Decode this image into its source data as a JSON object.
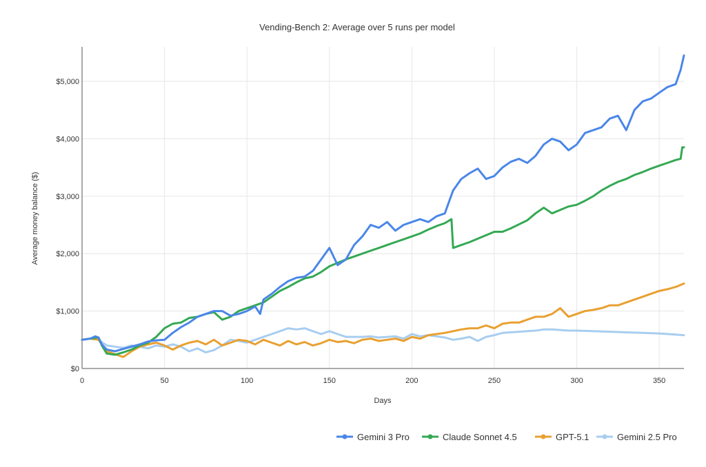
{
  "chart_data": {
    "type": "line",
    "title": "Vending-Bench 2: Average over 5 runs per model",
    "xlabel": "Days",
    "ylabel": "Average money balance ($)",
    "xlim": [
      0,
      365
    ],
    "ylim": [
      0,
      5600
    ],
    "xticks": [
      0,
      50,
      100,
      150,
      200,
      250,
      300,
      350
    ],
    "yticks": [
      0,
      1000,
      2000,
      3000,
      4000,
      5000
    ],
    "ytick_labels": [
      "$0",
      "$1,000",
      "$2,000",
      "$3,000",
      "$4,000",
      "$5,000"
    ],
    "grid": true,
    "legend_position": "bottom-right",
    "series": [
      {
        "name": "Gemini 3 Pro",
        "color": "#4a86e8",
        "x": [
          0,
          5,
          8,
          10,
          12,
          15,
          20,
          25,
          30,
          35,
          40,
          45,
          50,
          55,
          60,
          65,
          70,
          75,
          80,
          85,
          90,
          95,
          100,
          105,
          108,
          110,
          115,
          120,
          125,
          130,
          135,
          140,
          145,
          150,
          155,
          160,
          165,
          170,
          175,
          180,
          185,
          190,
          195,
          200,
          205,
          210,
          215,
          220,
          225,
          230,
          235,
          240,
          245,
          250,
          255,
          260,
          265,
          270,
          275,
          280,
          285,
          290,
          295,
          300,
          305,
          310,
          315,
          320,
          325,
          330,
          335,
          340,
          345,
          350,
          355,
          360,
          363,
          365
        ],
        "y": [
          500,
          520,
          560,
          540,
          420,
          330,
          300,
          340,
          380,
          420,
          470,
          490,
          500,
          620,
          720,
          800,
          900,
          950,
          1000,
          1000,
          920,
          950,
          1000,
          1080,
          950,
          1200,
          1300,
          1420,
          1520,
          1580,
          1600,
          1700,
          1900,
          2100,
          1800,
          1900,
          2150,
          2300,
          2500,
          2450,
          2550,
          2400,
          2500,
          2550,
          2600,
          2550,
          2650,
          2700,
          3100,
          3300,
          3400,
          3480,
          3300,
          3350,
          3500,
          3600,
          3650,
          3580,
          3700,
          3900,
          4000,
          3950,
          3800,
          3900,
          4100,
          4150,
          4200,
          4350,
          4400,
          4150,
          4500,
          4650,
          4700,
          4800,
          4900,
          4950,
          5200,
          5450
        ]
      },
      {
        "name": "Claude Sonnet 4.5",
        "color": "#34a853",
        "x": [
          0,
          5,
          10,
          12,
          15,
          20,
          25,
          30,
          35,
          40,
          45,
          50,
          55,
          60,
          65,
          70,
          75,
          80,
          85,
          90,
          95,
          100,
          105,
          110,
          115,
          120,
          125,
          130,
          135,
          140,
          145,
          150,
          155,
          160,
          165,
          170,
          175,
          180,
          185,
          190,
          195,
          200,
          205,
          210,
          215,
          220,
          224,
          225,
          230,
          235,
          240,
          245,
          250,
          255,
          260,
          265,
          270,
          275,
          280,
          285,
          290,
          295,
          300,
          305,
          310,
          315,
          320,
          325,
          330,
          335,
          340,
          345,
          350,
          355,
          360,
          363,
          364,
          365
        ],
        "y": [
          500,
          520,
          540,
          400,
          260,
          240,
          280,
          330,
          400,
          450,
          550,
          700,
          780,
          800,
          880,
          900,
          950,
          980,
          850,
          900,
          1000,
          1050,
          1100,
          1150,
          1250,
          1350,
          1420,
          1500,
          1570,
          1600,
          1680,
          1780,
          1840,
          1900,
          1950,
          2000,
          2050,
          2100,
          2150,
          2200,
          2250,
          2300,
          2350,
          2420,
          2480,
          2530,
          2600,
          2100,
          2150,
          2200,
          2260,
          2320,
          2380,
          2380,
          2440,
          2510,
          2580,
          2700,
          2800,
          2700,
          2760,
          2820,
          2850,
          2920,
          3000,
          3100,
          3180,
          3250,
          3300,
          3370,
          3420,
          3480,
          3530,
          3580,
          3630,
          3650,
          3850,
          3850
        ]
      },
      {
        "name": "GPT-5.1",
        "color": "#e8a030",
        "x": [
          0,
          5,
          10,
          15,
          20,
          25,
          30,
          35,
          40,
          45,
          50,
          55,
          60,
          65,
          70,
          75,
          80,
          85,
          90,
          95,
          100,
          105,
          110,
          115,
          120,
          125,
          130,
          135,
          140,
          145,
          150,
          155,
          160,
          165,
          170,
          175,
          180,
          185,
          190,
          195,
          200,
          205,
          210,
          215,
          220,
          225,
          230,
          235,
          240,
          245,
          250,
          255,
          260,
          265,
          270,
          275,
          280,
          285,
          290,
          295,
          300,
          305,
          310,
          315,
          320,
          325,
          330,
          335,
          340,
          345,
          350,
          355,
          360,
          365
        ],
        "y": [
          500,
          520,
          500,
          300,
          250,
          200,
          300,
          380,
          420,
          450,
          400,
          330,
          400,
          450,
          480,
          420,
          500,
          400,
          450,
          500,
          480,
          420,
          500,
          450,
          400,
          480,
          420,
          460,
          400,
          440,
          500,
          460,
          480,
          440,
          500,
          520,
          480,
          500,
          520,
          480,
          550,
          520,
          580,
          600,
          620,
          650,
          680,
          700,
          700,
          750,
          700,
          780,
          800,
          800,
          850,
          900,
          900,
          950,
          1050,
          900,
          950,
          1000,
          1020,
          1050,
          1100,
          1100,
          1150,
          1200,
          1250,
          1300,
          1350,
          1380,
          1420,
          1480
        ]
      },
      {
        "name": "Gemini 2.5 Pro",
        "color": "#a8cdf0",
        "x": [
          0,
          5,
          10,
          15,
          20,
          25,
          30,
          35,
          40,
          45,
          50,
          55,
          60,
          65,
          70,
          75,
          80,
          85,
          90,
          95,
          100,
          105,
          110,
          115,
          120,
          125,
          130,
          135,
          140,
          145,
          150,
          155,
          160,
          165,
          170,
          175,
          180,
          185,
          190,
          195,
          200,
          205,
          210,
          215,
          220,
          225,
          230,
          235,
          240,
          245,
          250,
          255,
          260,
          265,
          270,
          275,
          280,
          285,
          290,
          295,
          300,
          310,
          320,
          330,
          340,
          350,
          360,
          365
        ],
        "y": [
          500,
          520,
          500,
          400,
          380,
          360,
          400,
          380,
          350,
          400,
          380,
          420,
          380,
          300,
          350,
          280,
          320,
          400,
          500,
          480,
          450,
          500,
          550,
          600,
          650,
          700,
          680,
          700,
          650,
          600,
          650,
          600,
          550,
          550,
          550,
          560,
          540,
          550,
          560,
          520,
          600,
          560,
          580,
          560,
          540,
          500,
          520,
          550,
          480,
          550,
          580,
          620,
          630,
          640,
          650,
          660,
          680,
          680,
          670,
          660,
          660,
          650,
          640,
          630,
          620,
          610,
          590,
          580
        ]
      }
    ]
  }
}
